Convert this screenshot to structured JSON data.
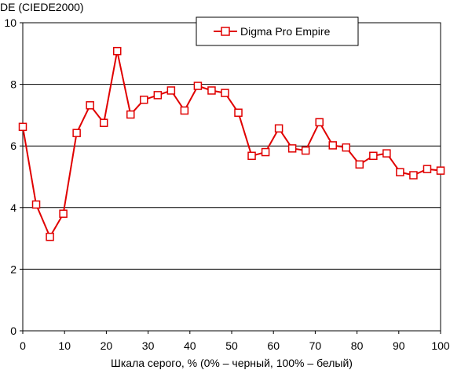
{
  "chart_data": {
    "type": "line",
    "ylabel": "DE (CIEDE2000)",
    "xlabel": "Шкала серого, % (0% – черный, 100% – белый)",
    "xlim": [
      0,
      100
    ],
    "ylim": [
      0,
      10
    ],
    "x_ticks": [
      "0",
      "10",
      "20",
      "30",
      "40",
      "50",
      "60",
      "70",
      "80",
      "90",
      "100"
    ],
    "y_ticks": [
      "0",
      "2",
      "4",
      "6",
      "8",
      "10"
    ],
    "grid": "horizontal",
    "legend_position": "top-right",
    "series": [
      {
        "name": "Digma Pro Empire",
        "color": "#e00000",
        "marker": "square-open",
        "x": [
          0,
          3.2,
          6.5,
          9.7,
          12.9,
          16.1,
          19.4,
          22.6,
          25.8,
          29.0,
          32.3,
          35.5,
          38.7,
          41.9,
          45.2,
          48.4,
          51.6,
          54.8,
          58.1,
          61.3,
          64.5,
          67.7,
          71.0,
          74.2,
          77.4,
          80.6,
          83.9,
          87.1,
          90.3,
          93.5,
          96.8,
          100
        ],
        "y": [
          6.62,
          4.1,
          3.05,
          3.8,
          6.42,
          7.32,
          6.75,
          9.08,
          7.02,
          7.5,
          7.65,
          7.8,
          7.15,
          7.95,
          7.8,
          7.72,
          7.08,
          5.68,
          5.8,
          6.57,
          5.92,
          5.85,
          6.77,
          6.02,
          5.95,
          5.4,
          5.68,
          5.76,
          5.15,
          5.05,
          5.25,
          5.2
        ]
      }
    ]
  }
}
